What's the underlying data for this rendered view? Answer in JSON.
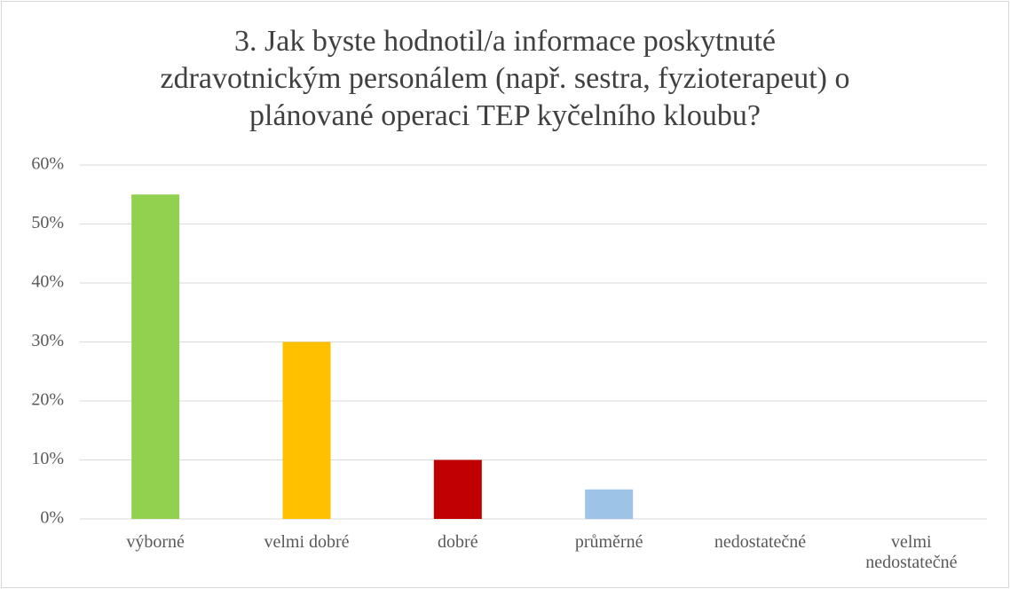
{
  "chart_data": {
    "type": "bar",
    "title": [
      "3. Jak byste hodnotil/a informace poskytnuté",
      "zdravotnickým personálem (např. sestra, fyzioterapeut) o",
      "plánované operaci TEP kyčelního kloubu?"
    ],
    "categories": [
      "výborné",
      "velmi dobré",
      "dobré",
      "průměrné",
      "nedostatečné",
      "velmi nedostatečné"
    ],
    "values": [
      55,
      30,
      10,
      5,
      0,
      0
    ],
    "colors": [
      "#92d050",
      "#ffc000",
      "#c00000",
      "#9dc3e6",
      null,
      null
    ],
    "ylim": [
      0,
      60
    ],
    "yticks": [
      {
        "value": 0,
        "label": "0%"
      },
      {
        "value": 10,
        "label": "10%"
      },
      {
        "value": 20,
        "label": "20%"
      },
      {
        "value": 30,
        "label": "30%"
      },
      {
        "value": 40,
        "label": "40%"
      },
      {
        "value": 50,
        "label": "50%"
      },
      {
        "value": 60,
        "label": "60%"
      }
    ],
    "grid": true
  }
}
